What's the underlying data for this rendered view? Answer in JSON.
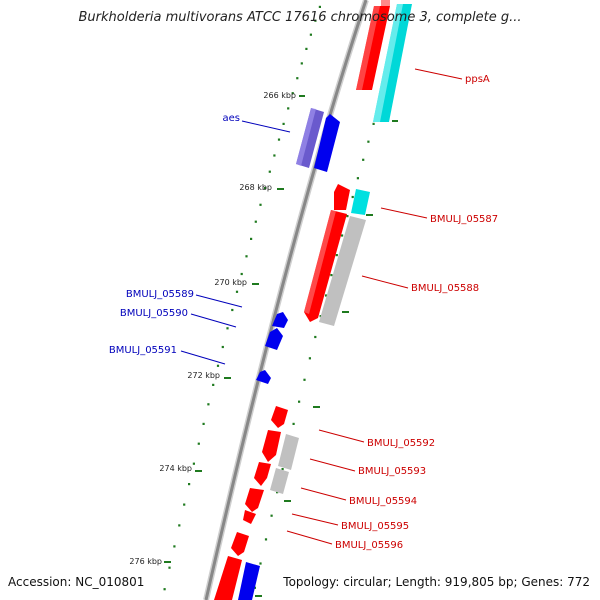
{
  "title": "Burkholderia multivorans ATCC 17616 chromosome 3, complete g...",
  "footer": {
    "accession": "Accession: NC_010801",
    "summary": "Topology: circular; Length: 919,805 bp; Genes: 772"
  },
  "colors": {
    "backbone": "#888888",
    "forward_cds": "#ff0000",
    "reverse_cds": "#0000ff",
    "forward_label": "#cc0000",
    "reverse_label": "#0000bb",
    "rna_cyan": "#00e0e0",
    "pseudo_grey": "#c0c0c0",
    "rna_purple": "#6a5acd",
    "gc_dot": "#1f7a1f"
  },
  "ticks": [
    {
      "label": "266 kbp"
    },
    {
      "label": "268 kbp"
    },
    {
      "label": "270 kbp"
    },
    {
      "label": "272 kbp"
    },
    {
      "label": "274 kbp"
    },
    {
      "label": "276 kbp"
    }
  ],
  "genes_right": [
    {
      "label": "ppsA"
    },
    {
      "label": "BMULJ_05587"
    },
    {
      "label": "BMULJ_05588"
    },
    {
      "label": "BMULJ_05592"
    },
    {
      "label": "BMULJ_05593"
    },
    {
      "label": "BMULJ_05594"
    },
    {
      "label": "BMULJ_05595"
    },
    {
      "label": "BMULJ_05596"
    }
  ],
  "genes_left": [
    {
      "label": "aes"
    },
    {
      "label": "BMULJ_05589"
    },
    {
      "label": "BMULJ_05590"
    },
    {
      "label": "BMULJ_05591"
    }
  ]
}
